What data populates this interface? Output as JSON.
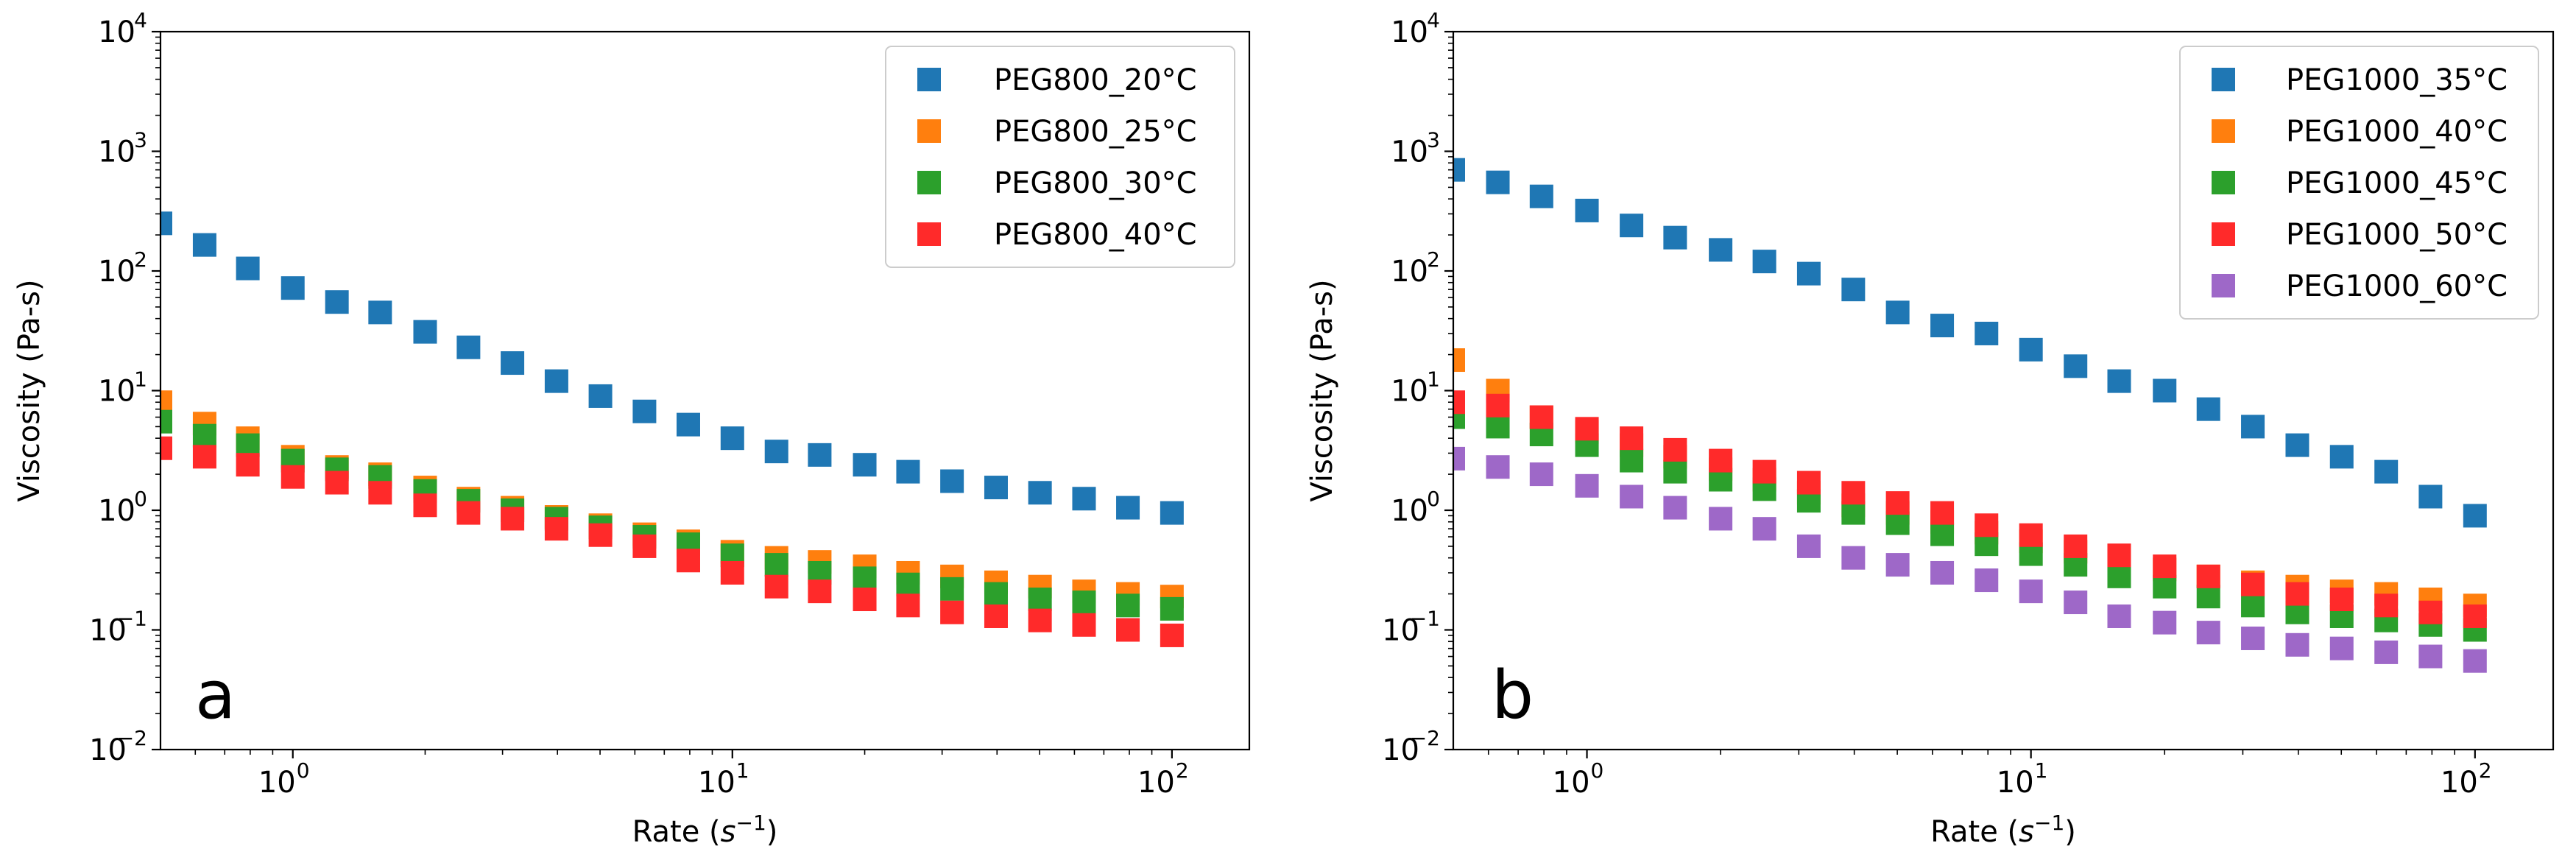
{
  "chart_data": [
    {
      "type": "scatter",
      "panel_label": "a",
      "xlabel_text": "Rate (",
      "xlabel_var": "s",
      "xlabel_exp": "−1",
      "xlabel_close": ")",
      "ylabel": "Viscosity (Pa-s)",
      "x_scale": "log",
      "y_scale": "log",
      "xlim": [
        0.5,
        150
      ],
      "ylim": [
        0.01,
        10000
      ],
      "x_ticks": [
        {
          "base": "10",
          "exp": "0",
          "value": 1
        },
        {
          "base": "10",
          "exp": "1",
          "value": 10
        },
        {
          "base": "10",
          "exp": "2",
          "value": 100
        }
      ],
      "y_ticks": [
        {
          "base": "10",
          "exp": "−2",
          "value": 0.01
        },
        {
          "base": "10",
          "exp": "−1",
          "value": 0.1
        },
        {
          "base": "10",
          "exp": "0",
          "value": 1
        },
        {
          "base": "10",
          "exp": "1",
          "value": 10
        },
        {
          "base": "10",
          "exp": "2",
          "value": 100
        },
        {
          "base": "10",
          "exp": "3",
          "value": 1000
        },
        {
          "base": "10",
          "exp": "4",
          "value": 10000
        }
      ],
      "legend_position": "top-right",
      "x": [
        0.5,
        0.63,
        0.79,
        1.0,
        1.26,
        1.58,
        2.0,
        2.51,
        3.16,
        3.98,
        5.01,
        6.31,
        7.94,
        10.0,
        12.6,
        15.8,
        20.0,
        25.1,
        31.6,
        39.8,
        50.1,
        63.1,
        79.4,
        100.0
      ],
      "series": [
        {
          "name": "PEG800_20°C",
          "color": "#1f77b4",
          "values": [
            250,
            165,
            105,
            72,
            55,
            45,
            31,
            23,
            17,
            12,
            9,
            6.7,
            5.2,
            4,
            3.1,
            2.9,
            2.4,
            2.1,
            1.75,
            1.55,
            1.4,
            1.25,
            1.05,
            0.95
          ]
        },
        {
          "name": "PEG800_25°C",
          "color": "#ff7f0e",
          "values": [
            8,
            5.3,
            4,
            2.8,
            2.3,
            2,
            1.55,
            1.25,
            1.05,
            0.88,
            0.75,
            0.63,
            0.55,
            0.45,
            0.4,
            0.37,
            0.34,
            0.3,
            0.28,
            0.25,
            0.23,
            0.21,
            0.2,
            0.19
          ]
        },
        {
          "name": "PEG800_30°C",
          "color": "#2ca02c",
          "values": [
            5.5,
            4.2,
            3.5,
            2.6,
            2.2,
            1.9,
            1.45,
            1.2,
            1.0,
            0.85,
            0.72,
            0.6,
            0.52,
            0.42,
            0.35,
            0.3,
            0.27,
            0.24,
            0.22,
            0.2,
            0.18,
            0.17,
            0.16,
            0.15
          ]
        },
        {
          "name": "PEG800_40°C",
          "color": "#ff2a2a",
          "values": [
            3.3,
            2.8,
            2.4,
            1.9,
            1.7,
            1.4,
            1.1,
            0.95,
            0.85,
            0.7,
            0.62,
            0.5,
            0.38,
            0.3,
            0.23,
            0.21,
            0.18,
            0.16,
            0.14,
            0.13,
            0.12,
            0.11,
            0.1,
            0.09
          ]
        }
      ]
    },
    {
      "type": "scatter",
      "panel_label": "b",
      "xlabel_text": "Rate (",
      "xlabel_var": "s",
      "xlabel_exp": "−1",
      "xlabel_close": ")",
      "ylabel": "Viscosity (Pa-s)",
      "x_scale": "log",
      "y_scale": "log",
      "xlim": [
        0.5,
        150
      ],
      "ylim": [
        0.01,
        10000
      ],
      "x_ticks": [
        {
          "base": "10",
          "exp": "0",
          "value": 1
        },
        {
          "base": "10",
          "exp": "1",
          "value": 10
        },
        {
          "base": "10",
          "exp": "2",
          "value": 100
        }
      ],
      "y_ticks": [
        {
          "base": "10",
          "exp": "−2",
          "value": 0.01
        },
        {
          "base": "10",
          "exp": "−1",
          "value": 0.1
        },
        {
          "base": "10",
          "exp": "0",
          "value": 1
        },
        {
          "base": "10",
          "exp": "1",
          "value": 10
        },
        {
          "base": "10",
          "exp": "2",
          "value": 100
        },
        {
          "base": "10",
          "exp": "3",
          "value": 1000
        },
        {
          "base": "10",
          "exp": "4",
          "value": 10000
        }
      ],
      "legend_position": "top-right",
      "x": [
        0.5,
        0.63,
        0.79,
        1.0,
        1.26,
        1.58,
        2.0,
        2.51,
        3.16,
        3.98,
        5.01,
        6.31,
        7.94,
        10.0,
        12.6,
        15.8,
        20.0,
        25.1,
        31.6,
        39.8,
        50.1,
        63.1,
        79.4,
        100.0
      ],
      "series": [
        {
          "name": "PEG1000_35°C",
          "color": "#1f77b4",
          "values": [
            700,
            550,
            420,
            320,
            240,
            190,
            150,
            120,
            95,
            70,
            45,
            35,
            30,
            22,
            16,
            12,
            10,
            7,
            5,
            3.5,
            2.8,
            2.1,
            1.3,
            0.9
          ]
        },
        {
          "name": "PEG1000_40°C",
          "color": "#ff7f0e",
          "values": [
            18,
            10,
            6,
            4.5,
            3.5,
            2.8,
            2.2,
            1.8,
            1.4,
            1.1,
            0.95,
            0.8,
            0.65,
            0.55,
            0.45,
            0.38,
            0.32,
            0.28,
            0.25,
            0.23,
            0.21,
            0.2,
            0.18,
            0.16
          ]
        },
        {
          "name": "PEG1000_45°C",
          "color": "#2ca02c",
          "values": [
            6,
            5,
            4.3,
            3.5,
            2.6,
            2.1,
            1.8,
            1.5,
            1.2,
            0.95,
            0.78,
            0.63,
            0.52,
            0.43,
            0.35,
            0.28,
            0.23,
            0.19,
            0.16,
            0.14,
            0.13,
            0.12,
            0.11,
            0.1
          ]
        },
        {
          "name": "PEG1000_50°C",
          "color": "#ff2a2a",
          "values": [
            8,
            7.5,
            6,
            4.8,
            4,
            3.2,
            2.6,
            2.1,
            1.7,
            1.4,
            1.15,
            0.95,
            0.75,
            0.62,
            0.5,
            0.42,
            0.34,
            0.28,
            0.24,
            0.2,
            0.18,
            0.16,
            0.14,
            0.13
          ]
        },
        {
          "name": "PEG1000_60°C",
          "color": "#9e68c8",
          "values": [
            2.7,
            2.3,
            2.0,
            1.6,
            1.3,
            1.05,
            0.85,
            0.7,
            0.5,
            0.4,
            0.35,
            0.3,
            0.26,
            0.21,
            0.17,
            0.13,
            0.115,
            0.095,
            0.085,
            0.075,
            0.07,
            0.065,
            0.06,
            0.055
          ]
        }
      ]
    }
  ]
}
